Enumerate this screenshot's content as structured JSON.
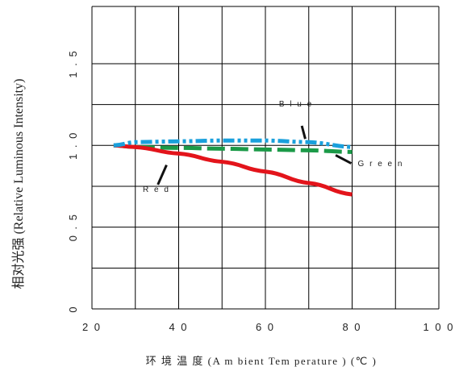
{
  "chart_data": {
    "type": "line",
    "xlabel": "环 境 温 度 (A m bient  Tem perature ) (℃ )",
    "ylabel": "相对光强 (Relative Luminous Intensity)",
    "xlim": [
      20,
      100
    ],
    "ylim": [
      0,
      1.85
    ],
    "x_ticks": [
      20,
      40,
      60,
      80,
      100
    ],
    "x_tick_labels": [
      "2 0",
      "4 0",
      "6 0",
      "8 0",
      "1 0 0"
    ],
    "y_ticks": [
      0,
      0.5,
      1.0,
      1.5
    ],
    "y_tick_labels": [
      "0",
      "0 . 5",
      "1 . 0",
      "1 . 5"
    ],
    "x_grid": [
      20,
      30,
      40,
      50,
      60,
      70,
      80,
      90,
      100
    ],
    "y_grid": [
      0,
      0.25,
      0.5,
      0.75,
      1.0,
      1.25,
      1.5,
      1.85
    ],
    "grid": true,
    "series": [
      {
        "name": "R e d",
        "color": "#e3141b",
        "dash": "solid",
        "x": [
          25,
          30,
          40,
          50,
          60,
          70,
          80
        ],
        "y": [
          1.0,
          0.99,
          0.95,
          0.9,
          0.84,
          0.77,
          0.7
        ]
      },
      {
        "name": "G r e e n",
        "color": "#1b9a48",
        "dash": "dashed",
        "x": [
          25,
          30,
          40,
          50,
          60,
          70,
          80
        ],
        "y": [
          1.0,
          0.99,
          0.985,
          0.98,
          0.975,
          0.97,
          0.96
        ]
      },
      {
        "name": "B l u e",
        "color": "#1aa0dc",
        "dash": "dashdotdot",
        "x": [
          25,
          30,
          40,
          50,
          60,
          70,
          80
        ],
        "y": [
          1.0,
          1.02,
          1.025,
          1.03,
          1.03,
          1.02,
          0.99
        ]
      }
    ],
    "annotations": [
      {
        "text": "B l u e",
        "series": "B l u e"
      },
      {
        "text": "G r e e n",
        "series": "G r e e n"
      },
      {
        "text": "R e d",
        "series": "R e d"
      }
    ]
  }
}
